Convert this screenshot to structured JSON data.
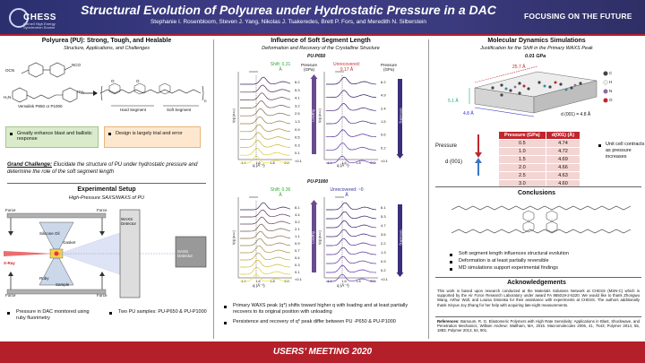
{
  "header": {
    "logo_text": "CHESS",
    "logo_subtext": "Cornell High Energy Synchrotron Source",
    "title": "Structural Evolution of Polyurea under Hydrostatic Pressure in a DAC",
    "authors": "Stephanie I. Rosenbloom, Steven J. Yang, Nikolas J. Tsakeredes, Brett P. Fors, and Meredith N. Silberstein",
    "tagline": "FOCUSING ON THE FUTURE"
  },
  "left": {
    "title": "Polyurea (PU): Strong, Tough, and Healable",
    "subtitle": "Structure, Applications, and Challenges",
    "chem_labels": [
      "OCN",
      "NCO",
      "H₂N",
      "NH₂",
      "Versalink P650 or P1000",
      "Hard Segment",
      "Soft Segment",
      "n",
      "O",
      "O"
    ],
    "green_box": "Greatly enhance blast and ballistic response",
    "orange_box": "Design is largely trial and error",
    "grand_challenge_label": "Grand Challenge:",
    "grand_challenge_text": "Elucidate the structure of PU under hydrostatic pressure and determine the role of the soft segment length",
    "setup_title": "Experimental Setup",
    "setup_subtitle": "High-Pressure SAXS/WAXS of PU",
    "setup_labels": {
      "force_tl": "Force",
      "force_tr": "Force",
      "force_bl": "Force",
      "force_br": "Force",
      "xray": "X-Ray",
      "silicone_oil": "Silicone Oil",
      "gasket": "Gasket",
      "ruby": "Ruby",
      "sample": "Sample",
      "waxs": "WAXS Detector",
      "saxs": "SAXS Detector"
    },
    "bullets": [
      "Pressure in DAC monitored using ruby fluorimetry",
      "Two PU samples: PU-P650 & PU-P1000"
    ]
  },
  "middle": {
    "title": "Influence of Soft Segment Length",
    "subtitle": "Deformation and Recovery of the Crystalline Structure",
    "panel1_label": "PU-P650",
    "panel2_label": "PU-P1000",
    "p1_shift": "Shift: 0.31 Å",
    "p1_unrec": "Unrecovered: 0.17 Å",
    "p2_shift": "Shift: 0.36 Å",
    "p2_unrec": "Unrecovered: ~0 Å",
    "pressure_head": "Pressure (GPa)",
    "loading": "Loading",
    "unloading": "Unloading",
    "ylabel": "I(q) (a.u.)",
    "xlabel": "q (Å⁻¹)",
    "xticks": [
      "1.4",
      "1.6",
      "1.8",
      "2.0"
    ],
    "p1_load": [
      "6.2",
      "5.3",
      "4.1",
      "3.2",
      "2.5",
      "1.3",
      "0.9",
      "0.5",
      "0.3",
      "0.1",
      "<0.1"
    ],
    "p1_unload": [
      "6.2",
      "4.9",
      "2.4",
      "1.5",
      "0.6",
      "0.2",
      "<0.1"
    ],
    "p2_load": [
      "6.1",
      "4.4",
      "3.2",
      "2.1",
      "1.1",
      "0.9",
      "0.7",
      "0.4",
      "0.3",
      "0.1",
      "<0.1"
    ],
    "p2_unload": [
      "6.1",
      "5.3",
      "4.7",
      "3.6",
      "2.2",
      "1.3",
      "0.9",
      "0.2",
      "<0.1"
    ],
    "bullets": [
      "Primary WAXS peak (q*) shifts toward higher q with loading and at least partially recovers to its original position with unloading",
      "Persistence and recovery of q* peak differ between PU -P650 & PU-P1000"
    ]
  },
  "right": {
    "title": "Molecular Dynamics Simulations",
    "subtitle": "Justification for the Shift in the Primary WAXS Peak",
    "sim_label": "0.01 GPa",
    "dim_a": "25.7 Å",
    "dim_b": "5.1 Å",
    "dim_c": "4.8 Å",
    "d001": "d (001) = 4.8 Å",
    "atom_legend": [
      "C",
      "H",
      "N",
      "O"
    ],
    "pressure_arrow_label": "Pressure",
    "d001_arrow_label": "d (001)",
    "table_headers": [
      "Pressure (GPa)",
      "d(001) (Å)"
    ],
    "table_rows": [
      [
        "0.5",
        "4.74"
      ],
      [
        "1.0",
        "4.72"
      ],
      [
        "1.5",
        "4.69"
      ],
      [
        "2.0",
        "4.66"
      ],
      [
        "2.5",
        "4.63"
      ],
      [
        "3.0",
        "4.60"
      ]
    ],
    "table_note": "Unit cell contracts as pressure increases",
    "conclusions_title": "Conclusions",
    "conclusions": [
      "Soft segment length influences structural evolution",
      "Deformation is at least partially reversible",
      "MD simulations support experimental findings"
    ],
    "ack_title": "Acknowledgements",
    "ack_text": "This work is based upon research conducted at the Materials Solutions Network at CHESS (MSN-C) which is supported by the Air Force Research Laboratory under award FA 865019-2-5220. We would like to thank Zhongwu Wang, Arthur Woll, and Louisa Smieska for their assistance with experiments at CHESS. The authors additionally thank Xinyue Joy Zhang for her help with acquiring late-night measurements.",
    "ref_label": "References:",
    "ref_text": "Barsoum, R. G. Elastomeric Polymers with High Rate Sensitivity: Applications in Blast, Shockwave, and Penetration Mechanics; William Andrew: Waltham, MA, 2015. Macromolecules 2006, 41, 7543; Polymer 2014, 55, 1883; Polymer 2013, 54, 901."
  },
  "footer": {
    "text": "USERS’ MEETING 2020"
  },
  "colors": {
    "header": "#3f3d86",
    "footer": "#b3202a",
    "accent": "#c0262d"
  }
}
